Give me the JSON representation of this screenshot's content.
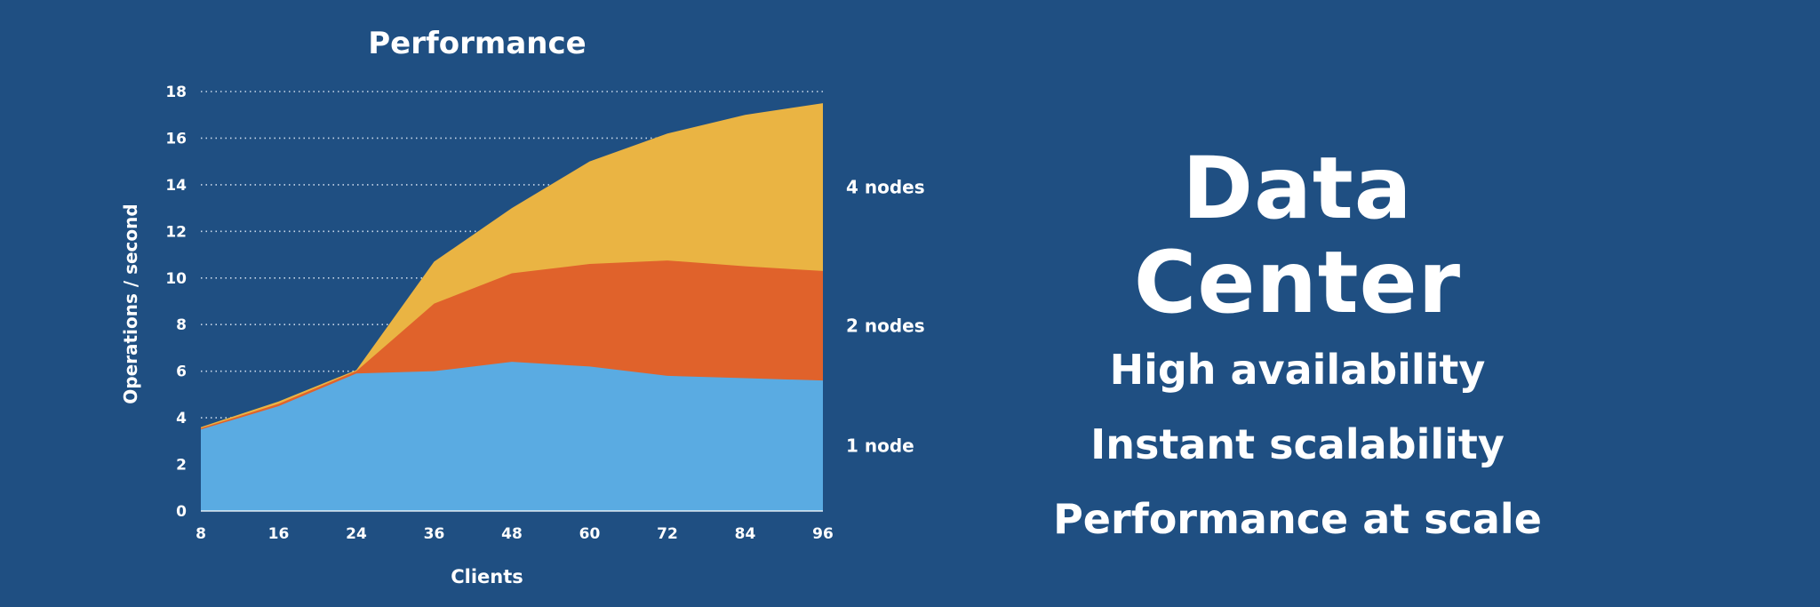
{
  "chart_data": {
    "type": "area",
    "stacked": true,
    "title": "Performance",
    "xlabel": "Clients",
    "ylabel": "Operations / second",
    "x": [
      8,
      16,
      24,
      36,
      48,
      60,
      72,
      84,
      96
    ],
    "ylim": [
      0,
      18
    ],
    "yticks": [
      0,
      2,
      4,
      6,
      8,
      10,
      12,
      14,
      16,
      18
    ],
    "grid": "horizontal-dotted",
    "series": [
      {
        "name": "1 node",
        "color": "#5aabe2",
        "values": [
          3.5,
          4.5,
          5.9,
          6.0,
          6.4,
          6.2,
          5.8,
          5.7,
          5.6
        ]
      },
      {
        "name": "2 nodes",
        "color": "#e0622b",
        "values": [
          3.55,
          4.6,
          6.0,
          8.9,
          10.2,
          10.6,
          10.75,
          10.5,
          10.3
        ]
      },
      {
        "name": "4 nodes",
        "color": "#eab443",
        "values": [
          3.6,
          4.7,
          6.05,
          10.7,
          13.0,
          15.0,
          16.2,
          17.0,
          17.5
        ]
      }
    ],
    "series_note": "values are cumulative (top edge of each stacked band)"
  },
  "panel": {
    "headline": "Data Center",
    "features": [
      "High availability",
      "Instant scalability",
      "Performance at scale"
    ]
  }
}
